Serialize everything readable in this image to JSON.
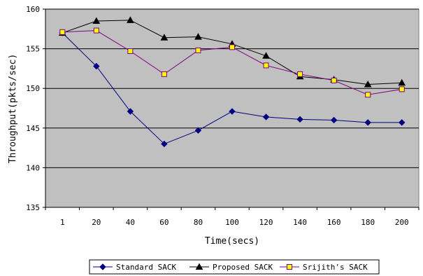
{
  "chart_data": {
    "type": "line",
    "title": "",
    "xlabel": "Time(secs)",
    "ylabel": "Throughput(pkts/sec)",
    "x": [
      "1",
      "20",
      "40",
      "60",
      "80",
      "100",
      "120",
      "140",
      "160",
      "180",
      "200"
    ],
    "ylim": [
      135,
      160
    ],
    "yticks": [
      135,
      140,
      145,
      150,
      155,
      160
    ],
    "grid": "horizontal",
    "plot_background": "#C0C0C0",
    "legend_position": "bottom",
    "series": [
      {
        "name": "Standard SACK",
        "color": "#000080",
        "marker": "diamond",
        "values": [
          157.0,
          152.8,
          147.1,
          143.0,
          144.7,
          147.1,
          146.4,
          146.1,
          146.0,
          145.7,
          145.7
        ]
      },
      {
        "name": "Proposed SACK",
        "color": "#000000",
        "marker": "triangle",
        "values": [
          157.0,
          158.5,
          158.6,
          156.4,
          156.5,
          155.6,
          154.1,
          151.5,
          151.1,
          150.5,
          150.7
        ]
      },
      {
        "name": "Srijith's SACK",
        "color": "#800080",
        "marker": "square",
        "marker_fill": "#FFFF00",
        "values": [
          157.1,
          157.3,
          154.7,
          151.8,
          154.8,
          155.2,
          152.9,
          151.8,
          151.0,
          149.2,
          149.9
        ]
      }
    ]
  }
}
